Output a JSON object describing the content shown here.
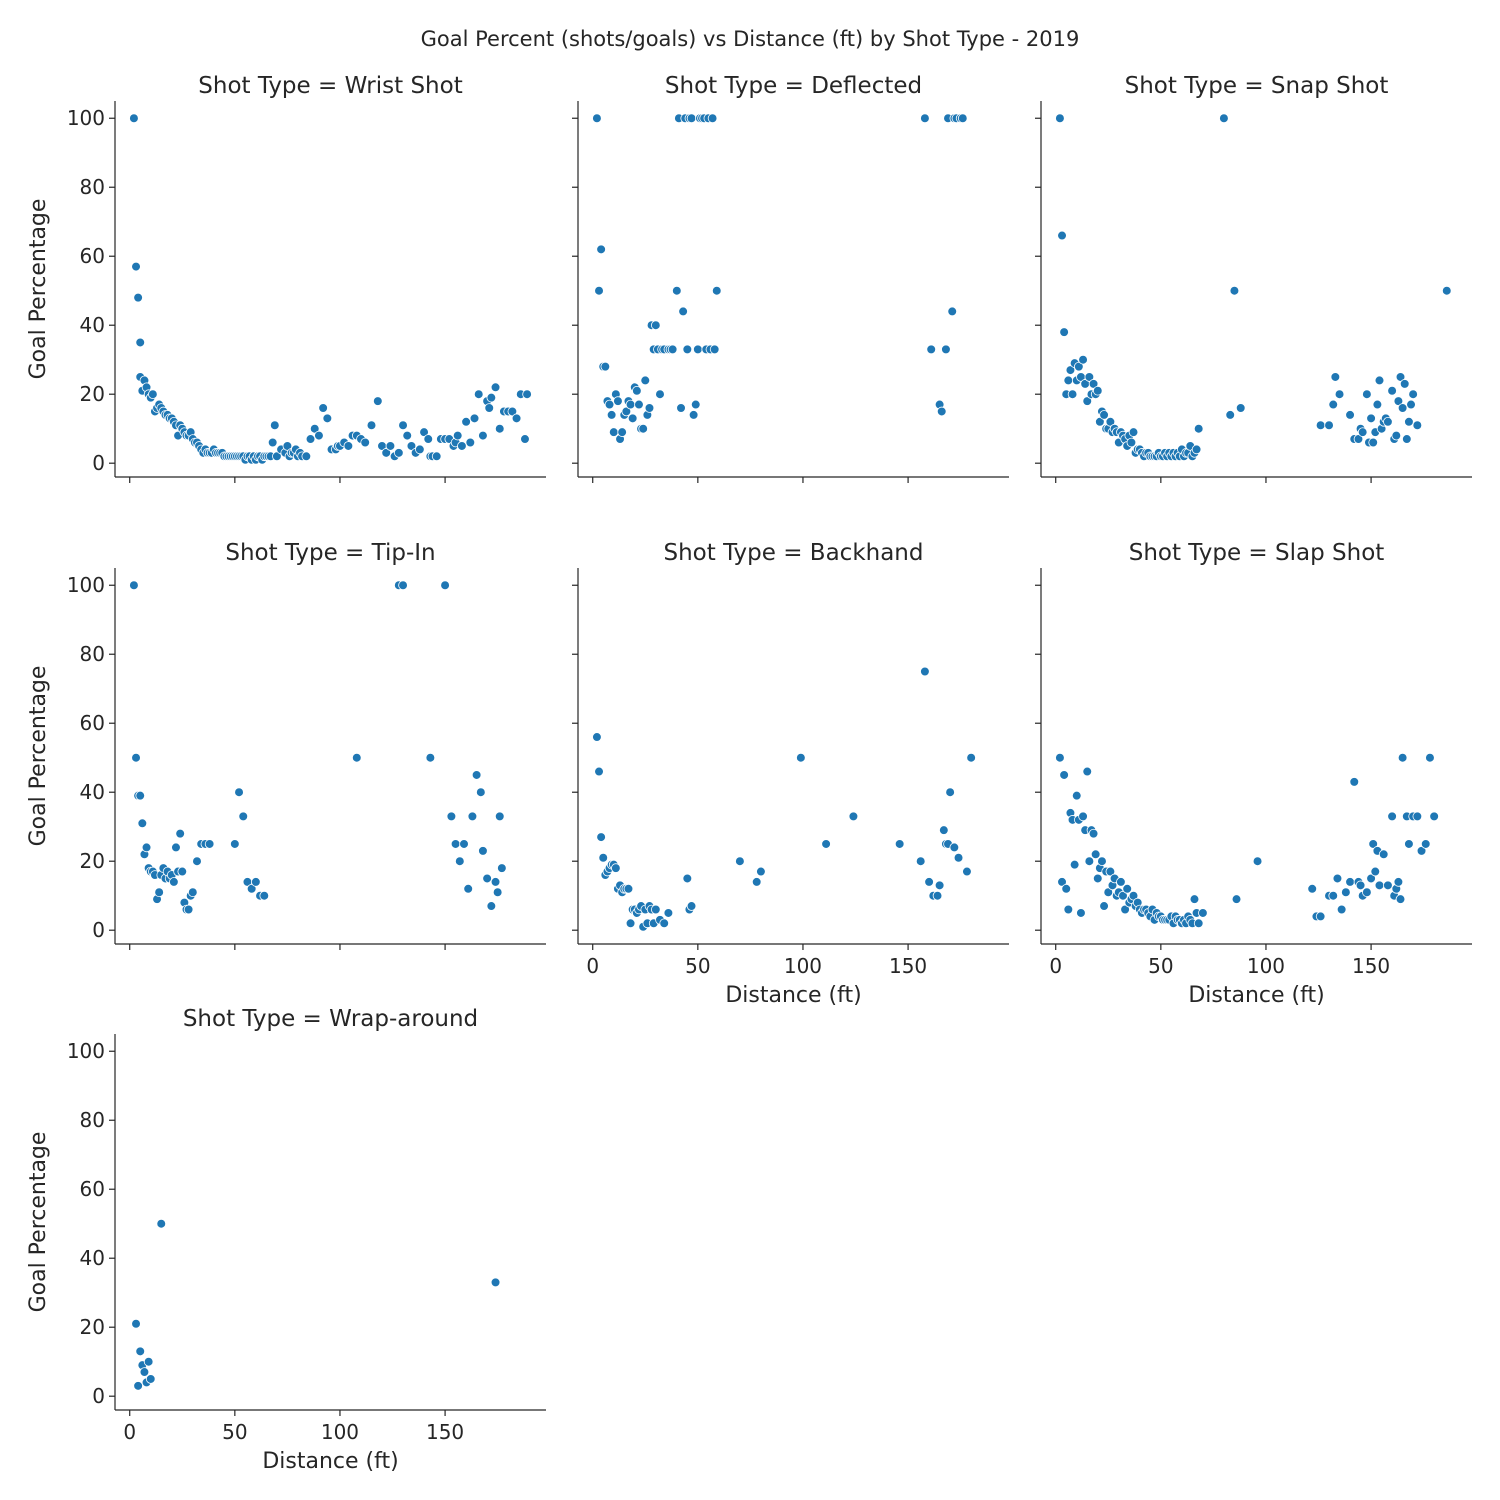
{
  "chart_data": {
    "type": "scatter",
    "title": "Goal Percent (shots/goals) vs Distance (ft) by Shot Type - 2019",
    "xlabel": "Distance (ft)",
    "ylabel": "Goal Percentage",
    "xlim": [
      -7,
      198
    ],
    "ylim": [
      -4,
      105
    ],
    "xticks": [
      0,
      50,
      100,
      150
    ],
    "yticks": [
      0,
      20,
      40,
      60,
      80,
      100
    ],
    "point_color": "#1f77b4",
    "grid": false,
    "facet_label_prefix": "Shot Type = ",
    "panels": [
      {
        "name": "Wrist Shot",
        "x": [
          2,
          3,
          4,
          5,
          5,
          6,
          7,
          8,
          9,
          10,
          11,
          12,
          13,
          14,
          15,
          16,
          17,
          18,
          19,
          20,
          21,
          22,
          23,
          24,
          25,
          26,
          27,
          28,
          29,
          30,
          31,
          32,
          33,
          34,
          35,
          36,
          37,
          38,
          39,
          40,
          41,
          42,
          43,
          44,
          45,
          46,
          47,
          48,
          49,
          50,
          51,
          52,
          53,
          54,
          55,
          56,
          57,
          58,
          59,
          60,
          61,
          62,
          63,
          64,
          65,
          66,
          67,
          68,
          69,
          70,
          72,
          74,
          75,
          76,
          77,
          78,
          79,
          80,
          81,
          82,
          84,
          86,
          88,
          90,
          92,
          94,
          96,
          98,
          99,
          100,
          102,
          104,
          106,
          108,
          110,
          112,
          115,
          118,
          120,
          122,
          124,
          126,
          128,
          130,
          132,
          134,
          136,
          138,
          140,
          142,
          143,
          144,
          146,
          148,
          150,
          152,
          154,
          155,
          156,
          158,
          160,
          162,
          164,
          166,
          168,
          170,
          171,
          172,
          174,
          176,
          178,
          180,
          182,
          184,
          186,
          188,
          189
        ],
        "y": [
          100,
          57,
          48,
          35,
          25,
          21,
          24,
          22,
          20,
          19,
          20,
          15,
          16,
          17,
          16,
          15,
          14,
          14,
          13,
          13,
          12,
          11,
          8,
          11,
          10,
          9,
          8,
          8,
          9,
          7,
          6,
          6,
          5,
          4,
          3,
          4,
          3,
          3,
          3,
          4,
          3,
          3,
          3,
          3,
          2,
          2,
          2,
          2,
          2,
          2,
          2,
          2,
          2,
          2,
          1,
          2,
          2,
          1,
          2,
          1,
          2,
          2,
          1,
          2,
          2,
          2,
          2,
          6,
          11,
          2,
          4,
          3,
          5,
          2,
          3,
          3,
          4,
          2,
          3,
          2,
          2,
          7,
          10,
          8,
          16,
          13,
          4,
          4,
          5,
          5,
          6,
          5,
          8,
          8,
          7,
          6,
          11,
          18,
          5,
          3,
          5,
          2,
          3,
          11,
          8,
          5,
          3,
          4,
          9,
          7,
          2,
          2,
          2,
          7,
          7,
          7,
          5,
          6,
          8,
          5,
          12,
          6,
          13,
          20,
          8,
          18,
          16,
          19,
          22,
          10,
          15,
          15,
          15,
          13,
          20,
          7,
          20
        ]
      },
      {
        "name": "Deflected",
        "x": [
          2,
          3,
          4,
          5,
          6,
          7,
          8,
          9,
          10,
          11,
          12,
          13,
          14,
          15,
          16,
          17,
          18,
          19,
          20,
          21,
          22,
          23,
          24,
          25,
          26,
          27,
          28,
          29,
          30,
          31,
          32,
          33,
          34,
          36,
          37,
          38,
          40,
          41,
          42,
          43,
          44,
          45,
          46,
          47,
          48,
          49,
          50,
          51,
          52,
          53,
          54,
          55,
          56,
          57,
          58,
          59,
          158,
          161,
          165,
          166,
          168,
          169,
          171,
          172,
          173,
          175,
          176
        ],
        "y": [
          100,
          50,
          62,
          28,
          28,
          18,
          17,
          14,
          9,
          20,
          18,
          7,
          9,
          14,
          15,
          18,
          17,
          13,
          22,
          21,
          17,
          10,
          10,
          24,
          14,
          16,
          40,
          33,
          40,
          33,
          20,
          33,
          33,
          33,
          33,
          33,
          50,
          100,
          16,
          44,
          100,
          33,
          100,
          100,
          14,
          17,
          33,
          100,
          100,
          100,
          33,
          100,
          33,
          100,
          33,
          50,
          100,
          33,
          17,
          15,
          33,
          100,
          44,
          100,
          100,
          100,
          100
        ]
      },
      {
        "name": "Snap Shot",
        "x": [
          2,
          3,
          4,
          5,
          6,
          7,
          8,
          9,
          10,
          11,
          12,
          13,
          14,
          15,
          16,
          17,
          18,
          19,
          20,
          21,
          22,
          23,
          24,
          25,
          26,
          27,
          28,
          29,
          30,
          31,
          32,
          33,
          34,
          35,
          36,
          37,
          38,
          39,
          40,
          41,
          42,
          43,
          44,
          45,
          46,
          47,
          48,
          49,
          50,
          51,
          52,
          53,
          54,
          55,
          56,
          57,
          58,
          59,
          60,
          61,
          62,
          63,
          64,
          65,
          66,
          67,
          68,
          80,
          83,
          85,
          88,
          126,
          130,
          132,
          133,
          135,
          140,
          142,
          144,
          145,
          146,
          148,
          149,
          150,
          151,
          152,
          153,
          154,
          155,
          156,
          157,
          158,
          160,
          161,
          162,
          163,
          164,
          165,
          166,
          167,
          168,
          169,
          170,
          172,
          186
        ],
        "y": [
          100,
          66,
          38,
          20,
          24,
          27,
          20,
          29,
          24,
          28,
          25,
          30,
          23,
          18,
          25,
          20,
          23,
          20,
          21,
          12,
          15,
          14,
          10,
          10,
          12,
          9,
          10,
          9,
          6,
          9,
          8,
          7,
          5,
          8,
          6,
          9,
          3,
          4,
          4,
          3,
          2,
          3,
          3,
          2,
          2,
          2,
          2,
          3,
          2,
          2,
          3,
          2,
          3,
          2,
          3,
          2,
          3,
          2,
          4,
          2,
          3,
          3,
          5,
          2,
          3,
          4,
          10,
          100,
          14,
          50,
          16,
          11,
          11,
          17,
          25,
          20,
          14,
          7,
          7,
          10,
          9,
          20,
          6,
          13,
          6,
          9,
          17,
          24,
          10,
          12,
          13,
          12,
          21,
          7,
          8,
          18,
          25,
          16,
          23,
          7,
          12,
          17,
          20,
          11,
          50
        ]
      },
      {
        "name": "Tip-In",
        "x": [
          2,
          3,
          4,
          5,
          6,
          7,
          8,
          9,
          10,
          11,
          12,
          13,
          14,
          15,
          16,
          17,
          18,
          19,
          20,
          21,
          22,
          23,
          24,
          25,
          26,
          27,
          28,
          29,
          30,
          32,
          34,
          36,
          38,
          50,
          52,
          54,
          56,
          58,
          60,
          62,
          64,
          108,
          128,
          130,
          143,
          150,
          153,
          155,
          157,
          159,
          161,
          163,
          165,
          167,
          168,
          170,
          172,
          174,
          175,
          176,
          177
        ],
        "y": [
          100,
          50,
          39,
          39,
          31,
          22,
          24,
          18,
          17,
          17,
          16,
          9,
          11,
          16,
          18,
          15,
          17,
          15,
          16,
          14,
          24,
          17,
          28,
          17,
          8,
          6,
          6,
          10,
          11,
          20,
          25,
          25,
          25,
          25,
          40,
          33,
          14,
          12,
          14,
          10,
          10,
          50,
          100,
          100,
          50,
          100,
          33,
          25,
          20,
          25,
          12,
          33,
          45,
          40,
          23,
          15,
          7,
          14,
          11,
          33,
          18
        ]
      },
      {
        "name": "Backhand",
        "x": [
          2,
          3,
          4,
          5,
          6,
          7,
          8,
          9,
          10,
          11,
          12,
          13,
          14,
          15,
          16,
          17,
          18,
          19,
          20,
          21,
          22,
          23,
          24,
          25,
          26,
          27,
          28,
          29,
          30,
          32,
          34,
          36,
          45,
          46,
          47,
          70,
          78,
          80,
          99,
          111,
          124,
          146,
          156,
          158,
          160,
          162,
          164,
          165,
          167,
          168,
          169,
          170,
          172,
          174,
          178,
          180
        ],
        "y": [
          56,
          46,
          27,
          21,
          16,
          17,
          18,
          19,
          19,
          18,
          12,
          13,
          11,
          12,
          12,
          12,
          2,
          6,
          6,
          5,
          6,
          7,
          1,
          6,
          2,
          7,
          6,
          2,
          6,
          3,
          2,
          5,
          15,
          6,
          7,
          20,
          14,
          17,
          50,
          25,
          33,
          25,
          20,
          75,
          14,
          10,
          10,
          13,
          29,
          25,
          25,
          40,
          24,
          21,
          17,
          50
        ]
      },
      {
        "name": "Slap Shot",
        "x": [
          2,
          3,
          4,
          5,
          6,
          7,
          8,
          9,
          10,
          11,
          12,
          13,
          14,
          15,
          16,
          17,
          18,
          19,
          20,
          21,
          22,
          23,
          24,
          25,
          26,
          27,
          28,
          29,
          30,
          31,
          32,
          33,
          34,
          35,
          36,
          37,
          38,
          39,
          40,
          41,
          42,
          43,
          44,
          45,
          46,
          47,
          48,
          49,
          50,
          51,
          52,
          53,
          54,
          55,
          56,
          57,
          58,
          59,
          60,
          61,
          62,
          63,
          64,
          65,
          66,
          67,
          68,
          70,
          86,
          96,
          122,
          124,
          126,
          130,
          132,
          134,
          136,
          138,
          140,
          142,
          144,
          145,
          146,
          148,
          150,
          151,
          152,
          153,
          154,
          156,
          158,
          160,
          161,
          162,
          163,
          164,
          165,
          167,
          168,
          170,
          172,
          174,
          176,
          178,
          180
        ],
        "y": [
          50,
          14,
          45,
          12,
          6,
          34,
          32,
          19,
          39,
          32,
          5,
          33,
          29,
          46,
          20,
          29,
          28,
          22,
          15,
          18,
          20,
          7,
          17,
          11,
          17,
          13,
          15,
          10,
          11,
          14,
          10,
          6,
          12,
          8,
          9,
          10,
          7,
          8,
          6,
          5,
          6,
          6,
          5,
          4,
          6,
          3,
          5,
          4,
          4,
          3,
          3,
          3,
          3,
          4,
          2,
          4,
          3,
          3,
          2,
          3,
          2,
          4,
          3,
          2,
          9,
          5,
          2,
          5,
          9,
          20,
          12,
          4,
          4,
          10,
          10,
          15,
          6,
          11,
          14,
          43,
          14,
          13,
          10,
          11,
          15,
          25,
          17,
          23,
          13,
          22,
          13,
          33,
          10,
          12,
          14,
          9,
          50,
          33,
          25,
          33,
          33,
          23,
          25,
          50,
          33
        ]
      },
      {
        "name": "Wrap-around",
        "x": [
          3,
          4,
          5,
          6,
          7,
          8,
          9,
          10,
          15,
          174
        ],
        "y": [
          21,
          3,
          13,
          9,
          7,
          4,
          10,
          5,
          50,
          33
        ]
      }
    ]
  }
}
